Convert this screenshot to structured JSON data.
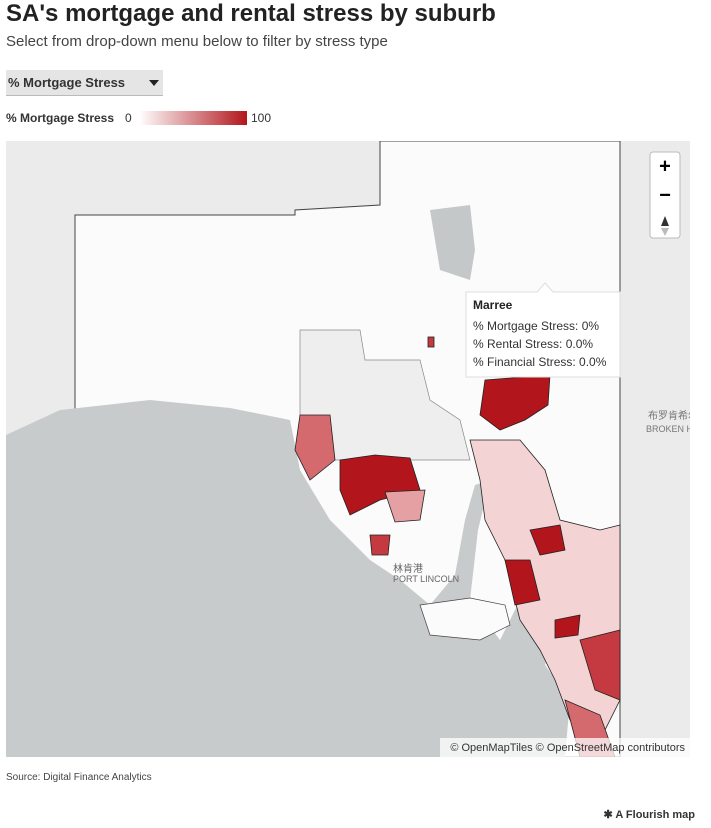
{
  "header": {
    "title": "SA's mortgage and rental stress by suburb",
    "subtitle": "Select from drop-down menu below to filter by stress type"
  },
  "dropdown": {
    "selected": "% Mortgage Stress"
  },
  "legend": {
    "title": "% Mortgage Stress",
    "min": 0,
    "max": 100,
    "color_low": "#ffffff",
    "color_high": "#b2161c"
  },
  "map": {
    "zoom_in": "+",
    "zoom_out": "−",
    "labels": [
      {
        "text": "布罗肯希尔"
      },
      {
        "text": "BROKEN HI"
      },
      {
        "text": "林肯港"
      },
      {
        "text": "PORT LINCOLN"
      }
    ],
    "attribution": "© OpenMapTiles © OpenStreetMap contributors"
  },
  "tooltip": {
    "title": "Marree",
    "lines": [
      "% Mortgage Stress: 0%",
      "% Rental Stress: 0.0%",
      "% Financial Stress: 0.0%"
    ]
  },
  "footer": {
    "source": "Source: Digital Finance Analytics",
    "credit": "A Flourish map"
  }
}
